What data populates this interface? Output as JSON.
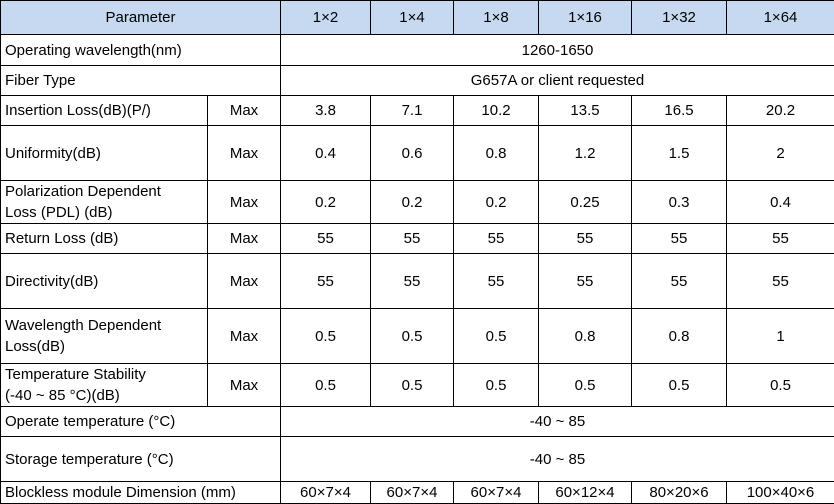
{
  "table": {
    "header": {
      "parameter": "Parameter",
      "columns": [
        "1×2",
        "1×4",
        "1×8",
        "1×16",
        "1×32",
        "1×64"
      ]
    },
    "rows": [
      {
        "label": "Operating wavelength(nm)",
        "value": "1260-1650"
      },
      {
        "label": "Fiber Type",
        "value": "G657A or client requested"
      },
      {
        "label": "Insertion Loss(dB)(P/)",
        "qualifier": "Max",
        "values": [
          "3.8",
          "7.1",
          "10.2",
          "13.5",
          "16.5",
          "20.2"
        ]
      },
      {
        "label": "Uniformity(dB)",
        "qualifier": "Max",
        "values": [
          "0.4",
          "0.6",
          "0.8",
          "1.2",
          "1.5",
          "2"
        ]
      },
      {
        "label": "Polarization Dependent\nLoss (PDL) (dB)",
        "qualifier": "Max",
        "values": [
          "0.2",
          "0.2",
          "0.2",
          "0.25",
          "0.3",
          "0.4"
        ]
      },
      {
        "label": "Return Loss (dB)",
        "qualifier": "Max",
        "values": [
          "55",
          "55",
          "55",
          "55",
          "55",
          "55"
        ]
      },
      {
        "label": "Directivity(dB)",
        "qualifier": "Max",
        "values": [
          "55",
          "55",
          "55",
          "55",
          "55",
          "55"
        ]
      },
      {
        "label": "Wavelength Dependent\nLoss(dB)",
        "qualifier": "Max",
        "values": [
          "0.5",
          "0.5",
          "0.5",
          "0.8",
          "0.8",
          "1"
        ]
      },
      {
        "label": "Temperature Stability\n(-40 ~ 85 °C)(dB)",
        "qualifier": "Max",
        "values": [
          "0.5",
          "0.5",
          "0.5",
          "0.5",
          "0.5",
          "0.5"
        ]
      },
      {
        "label": "Operate temperature (°C)",
        "value": "-40 ~ 85"
      },
      {
        "label": "Storage temperature (°C)",
        "value": "-40 ~ 85"
      },
      {
        "label": "Blockless module Dimension (mm)",
        "values": [
          "60×7×4",
          "60×7×4",
          "60×7×4",
          "60×12×4",
          "80×20×6",
          "100×40×6"
        ]
      }
    ]
  }
}
